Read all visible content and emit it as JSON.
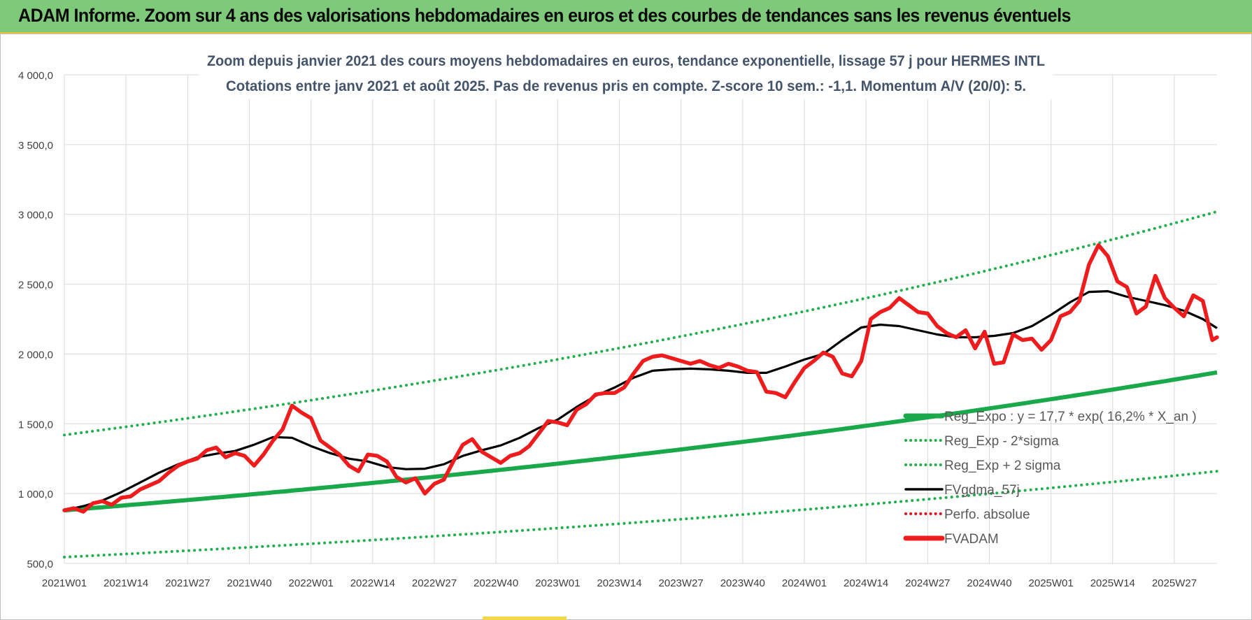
{
  "banner": {
    "text": "ADAM Informe. Zoom sur 4 ans des valorisations hebdomadaires en euros et des courbes de tendances sans les revenus éventuels"
  },
  "colors": {
    "banner_bg": "#7fc97a",
    "trend_green": "#1aa94a",
    "band_green": "#22b04e",
    "fvadam_red": "#ee1c1c",
    "fvgdma_black": "#000000",
    "perfo_red": "#e0141e",
    "grid": "#d9d9d9"
  },
  "chart_data": {
    "type": "line",
    "title_line1": "Zoom depuis janvier 2021 des cours moyens hebdomadaires en euros, tendance exponentielle, lissage 57 j pour HERMES INTL",
    "title_line2": "Cotations entre janv 2021 et août 2025.  Pas de revenus pris en compte. Z-score 10 sem.: -1,1. Momentum A/V (20/0): 5.",
    "y_ticks": [
      "4 000,0",
      "3 500,0",
      "3 000,0",
      "2 500,0",
      "2 000,0",
      "1 500,0",
      "1 000,0",
      "500,0"
    ],
    "y_tick_values": [
      4000,
      3500,
      3000,
      2500,
      2000,
      1500,
      1000,
      500
    ],
    "ylim": [
      500,
      4000
    ],
    "x_ticks": [
      "2021W01",
      "2021W14",
      "2021W27",
      "2021W40",
      "2022W01",
      "2022W14",
      "2022W27",
      "2022W40",
      "2023W01",
      "2023W14",
      "2023W27",
      "2023W40",
      "2024W01",
      "2024W14",
      "2024W27",
      "2024W40",
      "2025W01",
      "2025W14",
      "2025W27"
    ],
    "x_tick_weeks": [
      0,
      13,
      26,
      39,
      52,
      65,
      78,
      91,
      104,
      117,
      130,
      143,
      156,
      169,
      182,
      195,
      208,
      221,
      234
    ],
    "xlim_weeks": [
      0,
      243
    ],
    "grid": true,
    "legend_position": "bottom-right",
    "legend": [
      {
        "label": "Reg_Expo : y = 17,7 * exp( 16,2% *  X_an )",
        "style": "solid-green-thick"
      },
      {
        "label": "Reg_Exp - 2*sigma",
        "style": "dotted-green"
      },
      {
        "label": "Reg_Exp + 2 sigma",
        "style": "dotted-green"
      },
      {
        "label": "FVgdma_57j",
        "style": "solid-black"
      },
      {
        "label": "Perfo. absolue",
        "style": "dotted-red"
      },
      {
        "label": "FVADAM",
        "style": "solid-red-thick"
      }
    ],
    "series": [
      {
        "name": "Reg_Expo : y = 17,7 * exp( 16,2% *  X_an )",
        "note_kind": "exponential",
        "x": [
          0,
          243
        ],
        "values": [
          880,
          1868
        ]
      },
      {
        "name": "Reg_Exp - 2*sigma",
        "note_kind": "exponential",
        "x": [
          0,
          243
        ],
        "values": [
          545,
          1160
        ]
      },
      {
        "name": "Reg_Exp + 2 sigma",
        "note_kind": "exponential",
        "x": [
          0,
          243
        ],
        "values": [
          1420,
          3020
        ]
      },
      {
        "name": "FVgdma_57j",
        "x": [
          0,
          4,
          8,
          12,
          16,
          20,
          24,
          28,
          32,
          36,
          40,
          44,
          48,
          52,
          56,
          60,
          64,
          68,
          72,
          76,
          80,
          84,
          88,
          92,
          96,
          100,
          104,
          108,
          112,
          116,
          120,
          124,
          128,
          132,
          136,
          140,
          144,
          148,
          152,
          156,
          160,
          164,
          168,
          172,
          176,
          180,
          184,
          188,
          192,
          196,
          200,
          204,
          208,
          212,
          216,
          220,
          224,
          228,
          232,
          236,
          240,
          243
        ],
        "values": [
          880,
          910,
          950,
          1010,
          1080,
          1150,
          1210,
          1260,
          1285,
          1305,
          1350,
          1405,
          1400,
          1340,
          1290,
          1250,
          1230,
          1190,
          1175,
          1178,
          1210,
          1270,
          1310,
          1345,
          1400,
          1470,
          1530,
          1620,
          1700,
          1760,
          1830,
          1880,
          1890,
          1895,
          1890,
          1880,
          1865,
          1865,
          1910,
          1960,
          2000,
          2100,
          2190,
          2210,
          2200,
          2170,
          2140,
          2120,
          2120,
          2130,
          2150,
          2200,
          2280,
          2370,
          2445,
          2450,
          2410,
          2380,
          2350,
          2310,
          2250,
          2185
        ]
      },
      {
        "name": "FVADAM",
        "x": [
          0,
          2,
          4,
          6,
          8,
          10,
          12,
          14,
          16,
          18,
          20,
          22,
          24,
          26,
          28,
          30,
          32,
          34,
          36,
          38,
          40,
          42,
          44,
          46,
          48,
          50,
          52,
          54,
          56,
          58,
          60,
          62,
          64,
          66,
          68,
          70,
          72,
          74,
          76,
          78,
          80,
          82,
          84,
          86,
          88,
          90,
          92,
          94,
          96,
          98,
          100,
          102,
          104,
          106,
          108,
          110,
          112,
          114,
          116,
          118,
          120,
          122,
          124,
          126,
          128,
          130,
          132,
          134,
          136,
          138,
          140,
          142,
          144,
          146,
          148,
          150,
          152,
          154,
          156,
          158,
          160,
          162,
          164,
          166,
          168,
          170,
          172,
          174,
          176,
          178,
          180,
          182,
          184,
          186,
          188,
          190,
          192,
          194,
          196,
          198,
          200,
          202,
          204,
          206,
          208,
          210,
          212,
          214,
          216,
          218,
          220,
          222,
          224,
          226,
          228,
          230,
          232,
          234,
          236,
          238,
          240,
          242,
          243
        ],
        "values": [
          880,
          895,
          870,
          930,
          945,
          920,
          970,
          980,
          1030,
          1060,
          1090,
          1150,
          1200,
          1230,
          1250,
          1310,
          1330,
          1260,
          1290,
          1270,
          1200,
          1280,
          1380,
          1460,
          1630,
          1580,
          1540,
          1380,
          1330,
          1280,
          1200,
          1160,
          1280,
          1270,
          1230,
          1120,
          1080,
          1110,
          1000,
          1070,
          1100,
          1230,
          1350,
          1390,
          1300,
          1260,
          1220,
          1270,
          1290,
          1340,
          1430,
          1520,
          1510,
          1490,
          1600,
          1640,
          1710,
          1720,
          1720,
          1760,
          1860,
          1950,
          1980,
          1990,
          1970,
          1950,
          1930,
          1950,
          1920,
          1900,
          1930,
          1910,
          1880,
          1870,
          1730,
          1720,
          1690,
          1800,
          1900,
          1950,
          2010,
          1980,
          1860,
          1840,
          1950,
          2250,
          2300,
          2330,
          2400,
          2350,
          2300,
          2290,
          2200,
          2150,
          2120,
          2170,
          2040,
          2160,
          1930,
          1940,
          2140,
          2100,
          2110,
          2030,
          2100,
          2270,
          2300,
          2380,
          2640,
          2780,
          2700,
          2520,
          2480,
          2290,
          2340,
          2560,
          2400,
          2330,
          2270,
          2420,
          2380,
          2100,
          2120
        ]
      }
    ]
  }
}
